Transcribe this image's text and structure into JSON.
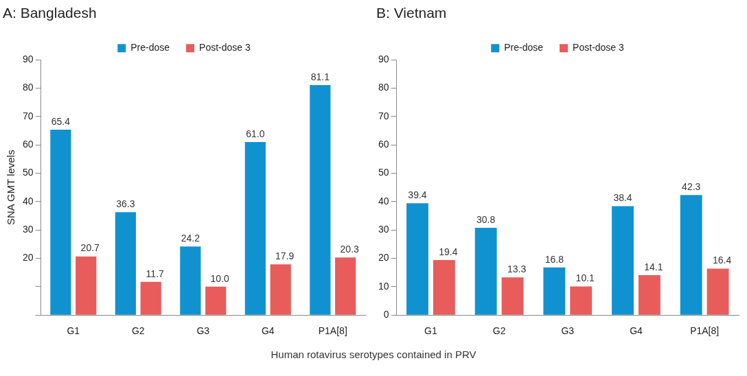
{
  "chart_data": [
    {
      "type": "bar",
      "title": "A: Bangladesh",
      "ylabel": "SNA GMT levels",
      "xlabel": "Human rotavirus serotypes contained in PRV",
      "categories": [
        "G1",
        "G2",
        "G3",
        "G4",
        "P1A[8]"
      ],
      "series": [
        {
          "name": "Pre-dose",
          "color": "#1192d0",
          "values": [
            65.4,
            36.3,
            24.2,
            61.0,
            81.1
          ],
          "value_labels": [
            "65.4",
            "36.3",
            "24.2",
            "61.0",
            "81.1"
          ]
        },
        {
          "name": "Post-dose 3",
          "color": "#e85c5c",
          "values": [
            20.7,
            11.7,
            10.0,
            17.9,
            20.3
          ],
          "value_labels": [
            "20.7",
            "11.7",
            "10.0",
            "17.9",
            "20.3"
          ]
        }
      ],
      "ylim": [
        0,
        90
      ],
      "yticks": [
        {
          "value": 0,
          "label": null
        },
        {
          "value": 10,
          "label": null
        },
        20,
        30,
        40,
        50,
        60,
        70,
        80,
        90
      ],
      "grid": false,
      "legend": "top"
    },
    {
      "type": "bar",
      "title": "B: Vietnam",
      "categories": [
        "G1",
        "G2",
        "G3",
        "G4",
        "P1A[8]"
      ],
      "series": [
        {
          "name": "Pre-dose",
          "color": "#1192d0",
          "values": [
            39.4,
            30.8,
            16.8,
            38.4,
            42.3
          ],
          "value_labels": [
            "39.4",
            "30.8",
            "16.8",
            "38.4",
            "42.3"
          ]
        },
        {
          "name": "Post-dose 3",
          "color": "#e85c5c",
          "values": [
            19.4,
            13.3,
            10.1,
            14.1,
            16.4
          ],
          "value_labels": [
            "19.4",
            "13.3",
            "10.1",
            "14.1",
            "16.4"
          ]
        }
      ],
      "ylim": [
        0,
        90
      ],
      "yticks": [
        0,
        10,
        20,
        30,
        40,
        50,
        60,
        70,
        80,
        90
      ],
      "grid": false,
      "legend": "top"
    }
  ]
}
